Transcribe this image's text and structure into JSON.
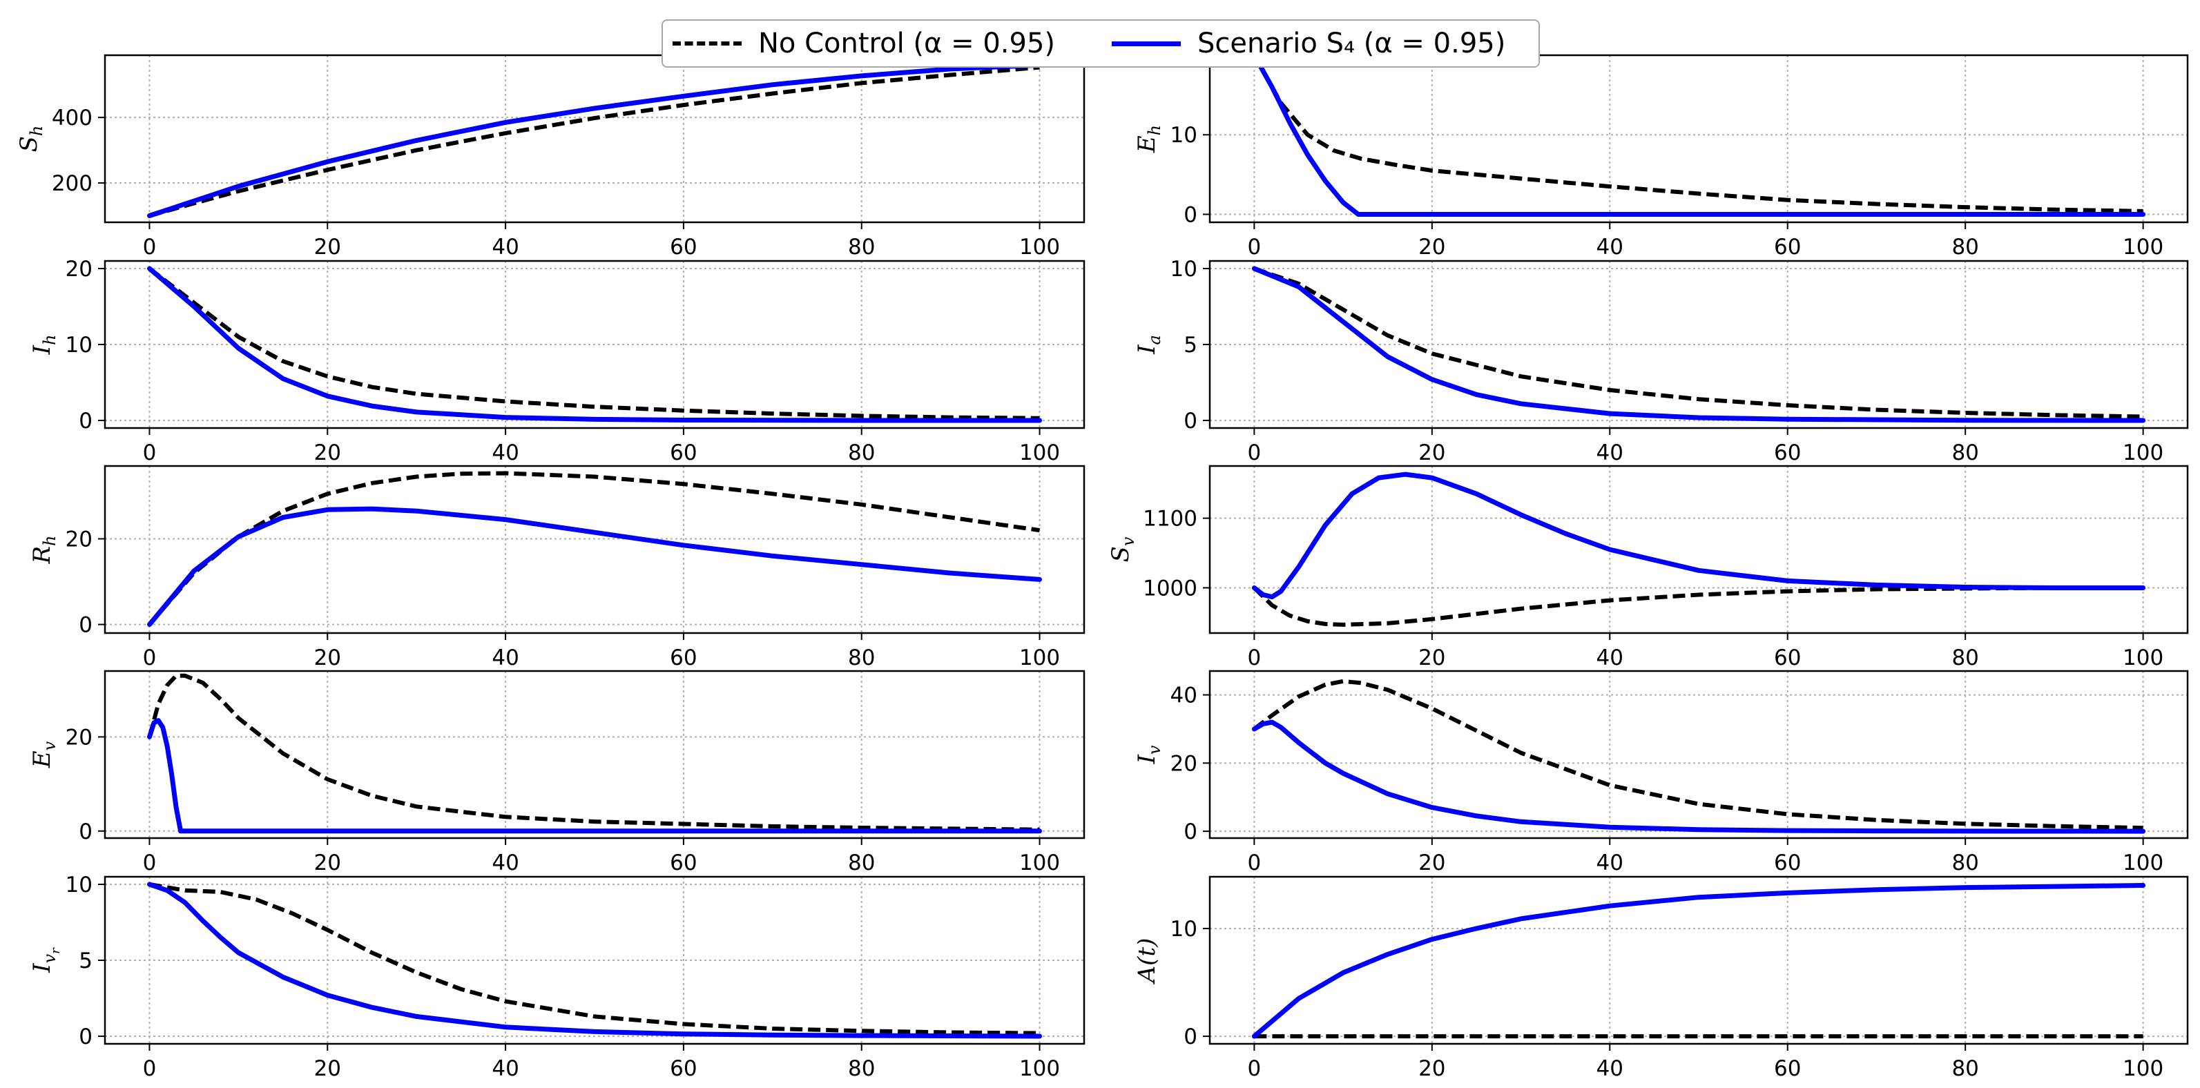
{
  "colors": {
    "no_control": "#000000",
    "scenario": "#0000ff",
    "grid": "#b0b0b0"
  },
  "legend": {
    "no_control_label": "No Control (α = 0.95)",
    "scenario_label": "Scenario S₄ (α = 0.95)"
  },
  "chart_data": [
    {
      "type": "line",
      "ylabel": "S_h",
      "ylabel_main": "S",
      "ylabel_sub": "h",
      "xlim": [
        -5,
        105
      ],
      "ylim": [
        80,
        590
      ],
      "xticks": [
        0,
        20,
        40,
        60,
        80,
        100
      ],
      "yticks": [
        200,
        400
      ],
      "grid": true,
      "series": [
        {
          "name": "No Control (α = 0.95)",
          "style": "dashed",
          "x": [
            0,
            5,
            10,
            20,
            30,
            40,
            50,
            60,
            70,
            80,
            90,
            100
          ],
          "y": [
            100,
            138,
            175,
            240,
            300,
            352,
            398,
            438,
            473,
            505,
            530,
            553
          ]
        },
        {
          "name": "Scenario S4 (α = 0.95)",
          "style": "solid",
          "x": [
            0,
            5,
            10,
            20,
            30,
            40,
            50,
            60,
            70,
            80,
            90,
            100
          ],
          "y": [
            100,
            145,
            190,
            265,
            330,
            385,
            428,
            465,
            500,
            527,
            548,
            560
          ]
        }
      ]
    },
    {
      "type": "line",
      "ylabel": "E_h",
      "ylabel_main": "E",
      "ylabel_sub": "h",
      "xlim": [
        -5,
        105
      ],
      "ylim": [
        -1,
        20
      ],
      "xticks": [
        0,
        20,
        40,
        60,
        80,
        100
      ],
      "yticks": [
        0,
        10
      ],
      "grid": true,
      "series": [
        {
          "name": "No Control (α = 0.95)",
          "style": "dashed",
          "x": [
            0,
            3,
            6,
            9,
            12,
            16,
            20,
            30,
            40,
            50,
            60,
            70,
            80,
            90,
            100
          ],
          "y": [
            20,
            14,
            10,
            8,
            7,
            6.2,
            5.5,
            4.5,
            3.5,
            2.6,
            1.8,
            1.3,
            0.9,
            0.6,
            0.4
          ]
        },
        {
          "name": "Scenario S4 (α = 0.95)",
          "style": "solid",
          "x": [
            0,
            2,
            4,
            6,
            8,
            10,
            11.7,
            20,
            40,
            60,
            80,
            100
          ],
          "y": [
            20,
            16,
            11.5,
            7.5,
            4.2,
            1.5,
            0,
            0,
            0,
            0,
            0,
            0
          ]
        }
      ]
    },
    {
      "type": "line",
      "ylabel": "I_h",
      "ylabel_main": "I",
      "ylabel_sub": "h",
      "xlim": [
        -5,
        105
      ],
      "ylim": [
        -1,
        21
      ],
      "xticks": [
        0,
        20,
        40,
        60,
        80,
        100
      ],
      "yticks": [
        0,
        10,
        20
      ],
      "grid": true,
      "series": [
        {
          "name": "No Control (α = 0.95)",
          "style": "dashed",
          "x": [
            0,
            5,
            10,
            15,
            20,
            25,
            30,
            40,
            50,
            60,
            70,
            80,
            90,
            100
          ],
          "y": [
            20,
            15.5,
            11,
            7.8,
            5.8,
            4.4,
            3.5,
            2.5,
            1.8,
            1.3,
            0.9,
            0.6,
            0.4,
            0.3
          ]
        },
        {
          "name": "Scenario S4 (α = 0.95)",
          "style": "solid",
          "x": [
            0,
            5,
            10,
            15,
            20,
            25,
            30,
            40,
            50,
            60,
            80,
            100
          ],
          "y": [
            20,
            15,
            9.5,
            5.5,
            3.2,
            1.9,
            1.1,
            0.4,
            0.15,
            0.05,
            0,
            0
          ]
        }
      ]
    },
    {
      "type": "line",
      "ylabel": "I_a",
      "ylabel_main": "I",
      "ylabel_sub": "a",
      "xlim": [
        -5,
        105
      ],
      "ylim": [
        -0.5,
        10.5
      ],
      "xticks": [
        0,
        20,
        40,
        60,
        80,
        100
      ],
      "yticks": [
        0,
        5,
        10
      ],
      "grid": true,
      "series": [
        {
          "name": "No Control (α = 0.95)",
          "style": "dashed",
          "x": [
            0,
            5,
            10,
            15,
            20,
            30,
            40,
            50,
            60,
            70,
            80,
            90,
            100
          ],
          "y": [
            10,
            9,
            7.3,
            5.6,
            4.4,
            2.9,
            2,
            1.4,
            1,
            0.7,
            0.5,
            0.35,
            0.25
          ]
        },
        {
          "name": "Scenario S4 (α = 0.95)",
          "style": "solid",
          "x": [
            0,
            5,
            10,
            15,
            20,
            25,
            30,
            40,
            50,
            60,
            80,
            100
          ],
          "y": [
            10,
            8.8,
            6.5,
            4.2,
            2.7,
            1.7,
            1.1,
            0.45,
            0.18,
            0.08,
            0.01,
            0
          ]
        }
      ]
    },
    {
      "type": "line",
      "ylabel": "R_h",
      "ylabel_main": "R",
      "ylabel_sub": "h",
      "xlim": [
        -5,
        105
      ],
      "ylim": [
        -2,
        37
      ],
      "xticks": [
        0,
        20,
        40,
        60,
        80,
        100
      ],
      "yticks": [
        0,
        20
      ],
      "grid": true,
      "series": [
        {
          "name": "No Control (α = 0.95)",
          "style": "dashed",
          "x": [
            0,
            5,
            10,
            15,
            20,
            25,
            30,
            35,
            40,
            50,
            60,
            70,
            80,
            90,
            100
          ],
          "y": [
            0,
            12,
            20.5,
            26.5,
            30.5,
            33,
            34.5,
            35.2,
            35.3,
            34.5,
            32.8,
            30.5,
            28,
            25,
            22
          ]
        },
        {
          "name": "Scenario S4 (α = 0.95)",
          "style": "solid",
          "x": [
            0,
            5,
            10,
            15,
            20,
            25,
            30,
            40,
            50,
            60,
            70,
            80,
            90,
            100
          ],
          "y": [
            0,
            12.5,
            20.5,
            25,
            26.8,
            27,
            26.5,
            24.5,
            21.5,
            18.5,
            16,
            14,
            12,
            10.5
          ]
        }
      ]
    },
    {
      "type": "line",
      "ylabel": "S_v",
      "ylabel_main": "S",
      "ylabel_sub": "v",
      "xlim": [
        -5,
        105
      ],
      "ylim": [
        935,
        1175
      ],
      "xticks": [
        0,
        20,
        40,
        60,
        80,
        100
      ],
      "yticks": [
        1000,
        1100
      ],
      "grid": true,
      "series": [
        {
          "name": "No Control (α = 0.95)",
          "style": "dashed",
          "x": [
            0,
            2,
            4,
            6,
            8,
            10,
            15,
            20,
            30,
            40,
            50,
            60,
            70,
            80,
            90,
            100
          ],
          "y": [
            1000,
            975,
            960,
            952,
            948,
            947,
            949,
            955,
            970,
            982,
            990,
            995,
            998,
            999,
            1000,
            1000
          ]
        },
        {
          "name": "Scenario S4 (α = 0.95)",
          "style": "solid",
          "x": [
            0,
            1,
            2,
            3,
            5,
            8,
            11,
            14,
            17,
            20,
            25,
            30,
            35,
            40,
            50,
            60,
            70,
            80,
            90,
            100
          ],
          "y": [
            1000,
            990,
            987,
            995,
            1030,
            1090,
            1135,
            1158,
            1163,
            1158,
            1135,
            1105,
            1078,
            1055,
            1025,
            1010,
            1004,
            1001,
            1000,
            1000
          ]
        }
      ]
    },
    {
      "type": "line",
      "ylabel": "E_v",
      "ylabel_main": "E",
      "ylabel_sub": "v",
      "xlim": [
        -5,
        105
      ],
      "ylim": [
        -1.5,
        34
      ],
      "xticks": [
        0,
        20,
        40,
        60,
        80,
        100
      ],
      "yticks": [
        0,
        20
      ],
      "grid": true,
      "series": [
        {
          "name": "No Control (α = 0.95)",
          "style": "dashed",
          "x": [
            0,
            1,
            2,
            3,
            4,
            6,
            8,
            10,
            15,
            20,
            25,
            30,
            40,
            50,
            60,
            70,
            80,
            90,
            100
          ],
          "y": [
            20,
            27,
            31,
            33,
            33,
            31.5,
            28,
            24,
            16.5,
            11,
            7.5,
            5.2,
            3,
            2,
            1.5,
            1,
            0.7,
            0.5,
            0.3
          ]
        },
        {
          "name": "Scenario S4 (α = 0.95)",
          "style": "solid",
          "x": [
            0,
            0.5,
            1,
            1.5,
            2,
            2.5,
            3,
            3.5,
            4,
            10,
            20,
            40,
            60,
            80,
            100
          ],
          "y": [
            20,
            23,
            23.5,
            22,
            18,
            12,
            5,
            0,
            0,
            0,
            0,
            0,
            0,
            0,
            0
          ]
        }
      ]
    },
    {
      "type": "line",
      "ylabel": "I_v",
      "ylabel_main": "I",
      "ylabel_sub": "v",
      "xlim": [
        -5,
        105
      ],
      "ylim": [
        -2,
        47
      ],
      "xticks": [
        0,
        20,
        40,
        60,
        80,
        100
      ],
      "yticks": [
        0,
        20,
        40
      ],
      "grid": true,
      "series": [
        {
          "name": "No Control (α = 0.95)",
          "style": "dashed",
          "x": [
            0,
            2,
            5,
            8,
            10,
            12,
            15,
            20,
            25,
            30,
            40,
            50,
            60,
            70,
            80,
            90,
            100
          ],
          "y": [
            30,
            34,
            39.5,
            43,
            44,
            43.5,
            41.5,
            36,
            29.5,
            23,
            13.5,
            8,
            5,
            3.3,
            2.2,
            1.5,
            1
          ]
        },
        {
          "name": "Scenario S4 (α = 0.95)",
          "style": "solid",
          "x": [
            0,
            1,
            2,
            3,
            5,
            8,
            10,
            15,
            20,
            25,
            30,
            40,
            50,
            60,
            70,
            80,
            100
          ],
          "y": [
            30,
            31.5,
            32,
            30.5,
            26,
            20,
            17,
            11,
            7,
            4.5,
            2.8,
            1.2,
            0.5,
            0.2,
            0.1,
            0.05,
            0
          ]
        }
      ]
    },
    {
      "type": "line",
      "ylabel": "I_v_r",
      "ylabel_main": "I",
      "ylabel_sub": "v",
      "ylabel_subsub": "r",
      "xlim": [
        -5,
        105
      ],
      "ylim": [
        -0.5,
        10.5
      ],
      "xticks": [
        0,
        20,
        40,
        60,
        80,
        100
      ],
      "yticks": [
        0,
        5,
        10
      ],
      "grid": true,
      "series": [
        {
          "name": "No Control (α = 0.95)",
          "style": "dashed",
          "x": [
            0,
            2,
            4,
            8,
            12,
            16,
            20,
            25,
            30,
            35,
            40,
            50,
            60,
            70,
            80,
            90,
            100
          ],
          "y": [
            10,
            9.8,
            9.6,
            9.5,
            9,
            8.1,
            7,
            5.5,
            4.2,
            3.1,
            2.3,
            1.3,
            0.8,
            0.5,
            0.35,
            0.25,
            0.2
          ]
        },
        {
          "name": "Scenario S4 (α = 0.95)",
          "style": "solid",
          "x": [
            0,
            2,
            4,
            6,
            8,
            10,
            15,
            20,
            25,
            30,
            40,
            50,
            60,
            70,
            80,
            100
          ],
          "y": [
            10,
            9.6,
            8.8,
            7.6,
            6.5,
            5.5,
            3.9,
            2.7,
            1.9,
            1.3,
            0.6,
            0.3,
            0.15,
            0.08,
            0.04,
            0
          ]
        }
      ]
    },
    {
      "type": "line",
      "ylabel": "A(t)",
      "ylabel_main": "A(t)",
      "ylabel_sub": "",
      "xlim": [
        -5,
        105
      ],
      "ylim": [
        -0.7,
        14.8
      ],
      "xticks": [
        0,
        20,
        40,
        60,
        80,
        100
      ],
      "yticks": [
        0,
        10
      ],
      "grid": true,
      "series": [
        {
          "name": "No Control (α = 0.95)",
          "style": "dashed",
          "x": [
            0,
            20,
            40,
            60,
            80,
            100
          ],
          "y": [
            0,
            0,
            0,
            0,
            0,
            0
          ]
        },
        {
          "name": "Scenario S4 (α = 0.95)",
          "style": "solid",
          "x": [
            0,
            5,
            10,
            15,
            20,
            25,
            30,
            40,
            50,
            60,
            70,
            80,
            90,
            100
          ],
          "y": [
            0,
            3.5,
            5.9,
            7.6,
            9,
            10,
            10.9,
            12.1,
            12.9,
            13.3,
            13.6,
            13.8,
            13.9,
            14
          ]
        }
      ]
    }
  ]
}
